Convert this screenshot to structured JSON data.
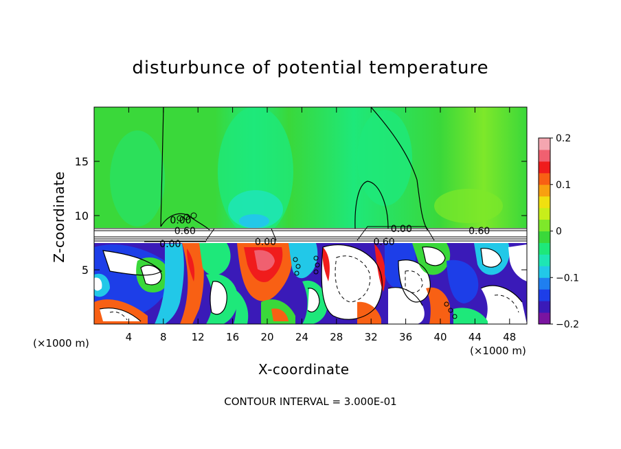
{
  "chart_data": {
    "type": "heatmap",
    "title": "disturbunce of potential temperature",
    "xlabel": "X-coordinate",
    "ylabel": "Z-coordinate",
    "x_unit_left": "(×1000 m)",
    "x_unit_right": "(×1000 m)",
    "xlim": [
      0,
      50
    ],
    "ylim": [
      0,
      20
    ],
    "xticks": [
      4,
      8,
      12,
      16,
      20,
      24,
      28,
      32,
      36,
      40,
      44,
      48
    ],
    "yticks": [
      5,
      10,
      15
    ],
    "colorbar": {
      "range": [
        -0.2,
        0.2
      ],
      "tick_values": [
        0.2,
        0.1,
        0,
        -0.1,
        -0.2
      ],
      "tick_labels": [
        "0.2",
        "0.1",
        "0",
        "−0.1",
        "−0.2"
      ],
      "colors": [
        "#7a14a0",
        "#3a1ab8",
        "#1d3ee8",
        "#1f7ff0",
        "#22c8e8",
        "#1ee6b4",
        "#1ee87a",
        "#3ad83a",
        "#7ee82a",
        "#c8ee1a",
        "#f0e010",
        "#f8a010",
        "#f86014",
        "#f01c1c",
        "#f06070",
        "#f4a6b0"
      ]
    },
    "contour_labels": [
      {
        "text": "0.60",
        "x": 10.5,
        "z": 8.6
      },
      {
        "text": "0.00",
        "x": 8.8,
        "z": 7.4
      },
      {
        "text": "0.00",
        "x": 19.8,
        "z": 7.6
      },
      {
        "text": "0.00",
        "x": 35.5,
        "z": 8.8
      },
      {
        "text": "0.60",
        "x": 33.5,
        "z": 7.6
      },
      {
        "text": "0.60",
        "x": 44.5,
        "z": 8.6
      },
      {
        "text": "0.00",
        "x": 10.0,
        "z": 9.6
      }
    ],
    "footer": "CONTOUR INTERVAL = 3.000E-01",
    "grid": false,
    "legend": "right"
  }
}
